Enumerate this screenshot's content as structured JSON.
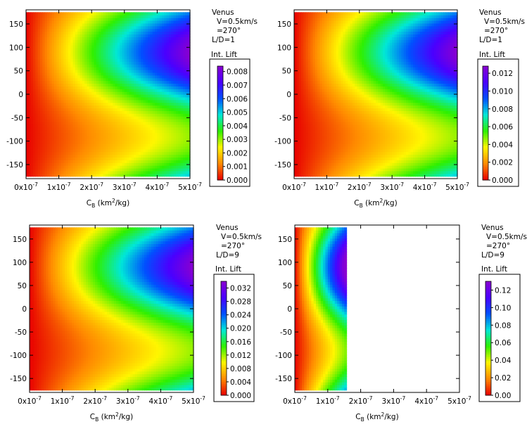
{
  "chart_data": [
    {
      "type": "heatmap",
      "panel": "top-left",
      "annotation": [
        "Venus",
        "V=0.5km/s",
        "=270°",
        "L/D=1"
      ],
      "colorbar_title": "Int. Lift",
      "colorbar_ticks": [
        "0.008",
        "0.007",
        "0.006",
        "0.005",
        "0.004",
        "0.003",
        "0.002",
        "0.001",
        "0.000"
      ],
      "crange": [
        0,
        0.0084
      ],
      "x_ticks": [
        "0x10",
        "1x10",
        "2x10",
        "3x10",
        "4x10",
        "5x10"
      ],
      "x_tick_exp": "-7",
      "y_ticks": [
        "150",
        "100",
        "50",
        "0",
        "-50",
        "-100",
        "-150"
      ],
      "xlim": [
        0,
        5e-07
      ],
      "ylim": [
        -180,
        180
      ],
      "xlabel": "C",
      "xlabel_sub": "B",
      "xlabel_units": "(km",
      "xlabel_sup": "2",
      "xlabel_tail": "/kg)",
      "data_extent_cb": 5e-07,
      "peak": {
        "cb": 5e-07,
        "angle": 90,
        "value": 0.0084
      }
    },
    {
      "type": "heatmap",
      "panel": "top-right",
      "annotation": [
        "Venus",
        "V=0.5km/s",
        "=270°",
        "L/D=1"
      ],
      "colorbar_title": "Int. Lift",
      "colorbar_ticks": [
        "0.012",
        "0.010",
        "0.008",
        "0.006",
        "0.004",
        "0.002",
        "0.000"
      ],
      "crange": [
        0,
        0.0128
      ],
      "x_ticks": [
        "0x10",
        "1x10",
        "2x10",
        "3x10",
        "4x10",
        "5x10"
      ],
      "x_tick_exp": "-7",
      "y_ticks": [
        "150",
        "100",
        "50",
        "0",
        "-50",
        "-100",
        "-150"
      ],
      "xlim": [
        0,
        5e-07
      ],
      "ylim": [
        -180,
        180
      ],
      "xlabel": "C",
      "xlabel_sub": "B",
      "xlabel_units": "(km",
      "xlabel_sup": "2",
      "xlabel_tail": "/kg)",
      "data_extent_cb": 5e-07,
      "peak": {
        "cb": 5e-07,
        "angle": 90,
        "value": 0.0128
      }
    },
    {
      "type": "heatmap",
      "panel": "bottom-left",
      "annotation": [
        "Venus",
        "V=0.5km/s",
        "=270°",
        "L/D=9"
      ],
      "colorbar_title": "Int. Lift",
      "colorbar_ticks": [
        "0.032",
        "0.028",
        "0.024",
        "0.020",
        "0.016",
        "0.012",
        "0.008",
        "0.004",
        "0.000"
      ],
      "crange": [
        0,
        0.034
      ],
      "x_ticks": [
        "0x10",
        "1x10",
        "2x10",
        "3x10",
        "4x10",
        "5x10"
      ],
      "x_tick_exp": "-7",
      "y_ticks": [
        "150",
        "100",
        "50",
        "0",
        "-50",
        "-100",
        "-150"
      ],
      "xlim": [
        0,
        5e-07
      ],
      "ylim": [
        -180,
        180
      ],
      "xlabel": "C",
      "xlabel_sub": "B",
      "xlabel_units": "(km",
      "xlabel_sup": "2",
      "xlabel_tail": "/kg)",
      "data_extent_cb": 5e-07,
      "peak": {
        "cb": 5e-07,
        "angle": 90,
        "value": 0.034
      }
    },
    {
      "type": "heatmap",
      "panel": "bottom-right",
      "annotation": [
        "Venus",
        "V=0.5km/s",
        "=270°",
        "L/D=9"
      ],
      "colorbar_title": "Int. Lift",
      "colorbar_ticks": [
        "0.12",
        "0.10",
        "0.08",
        "0.06",
        "0.04",
        "0.02",
        "0.00"
      ],
      "crange": [
        0,
        0.13
      ],
      "x_ticks": [
        "0x10",
        "1x10",
        "2x10",
        "3x10",
        "4x10",
        "5x10"
      ],
      "x_tick_exp": "-7",
      "y_ticks": [
        "150",
        "100",
        "50",
        "0",
        "-50",
        "-100",
        "-150"
      ],
      "xlim": [
        0,
        5e-07
      ],
      "ylim": [
        -180,
        180
      ],
      "xlabel": "C",
      "xlabel_sub": "B",
      "xlabel_units": "(km",
      "xlabel_sup": "2",
      "xlabel_tail": "/kg)",
      "data_extent_cb": 1.6e-07,
      "peak": {
        "cb": 1.5e-07,
        "angle": 90,
        "value": 0.13
      }
    }
  ],
  "colormap": [
    "#e80000",
    "#ff8a00",
    "#fff600",
    "#2ef000",
    "#00e8d8",
    "#0050ff",
    "#4a00ff",
    "#8a00d0"
  ]
}
